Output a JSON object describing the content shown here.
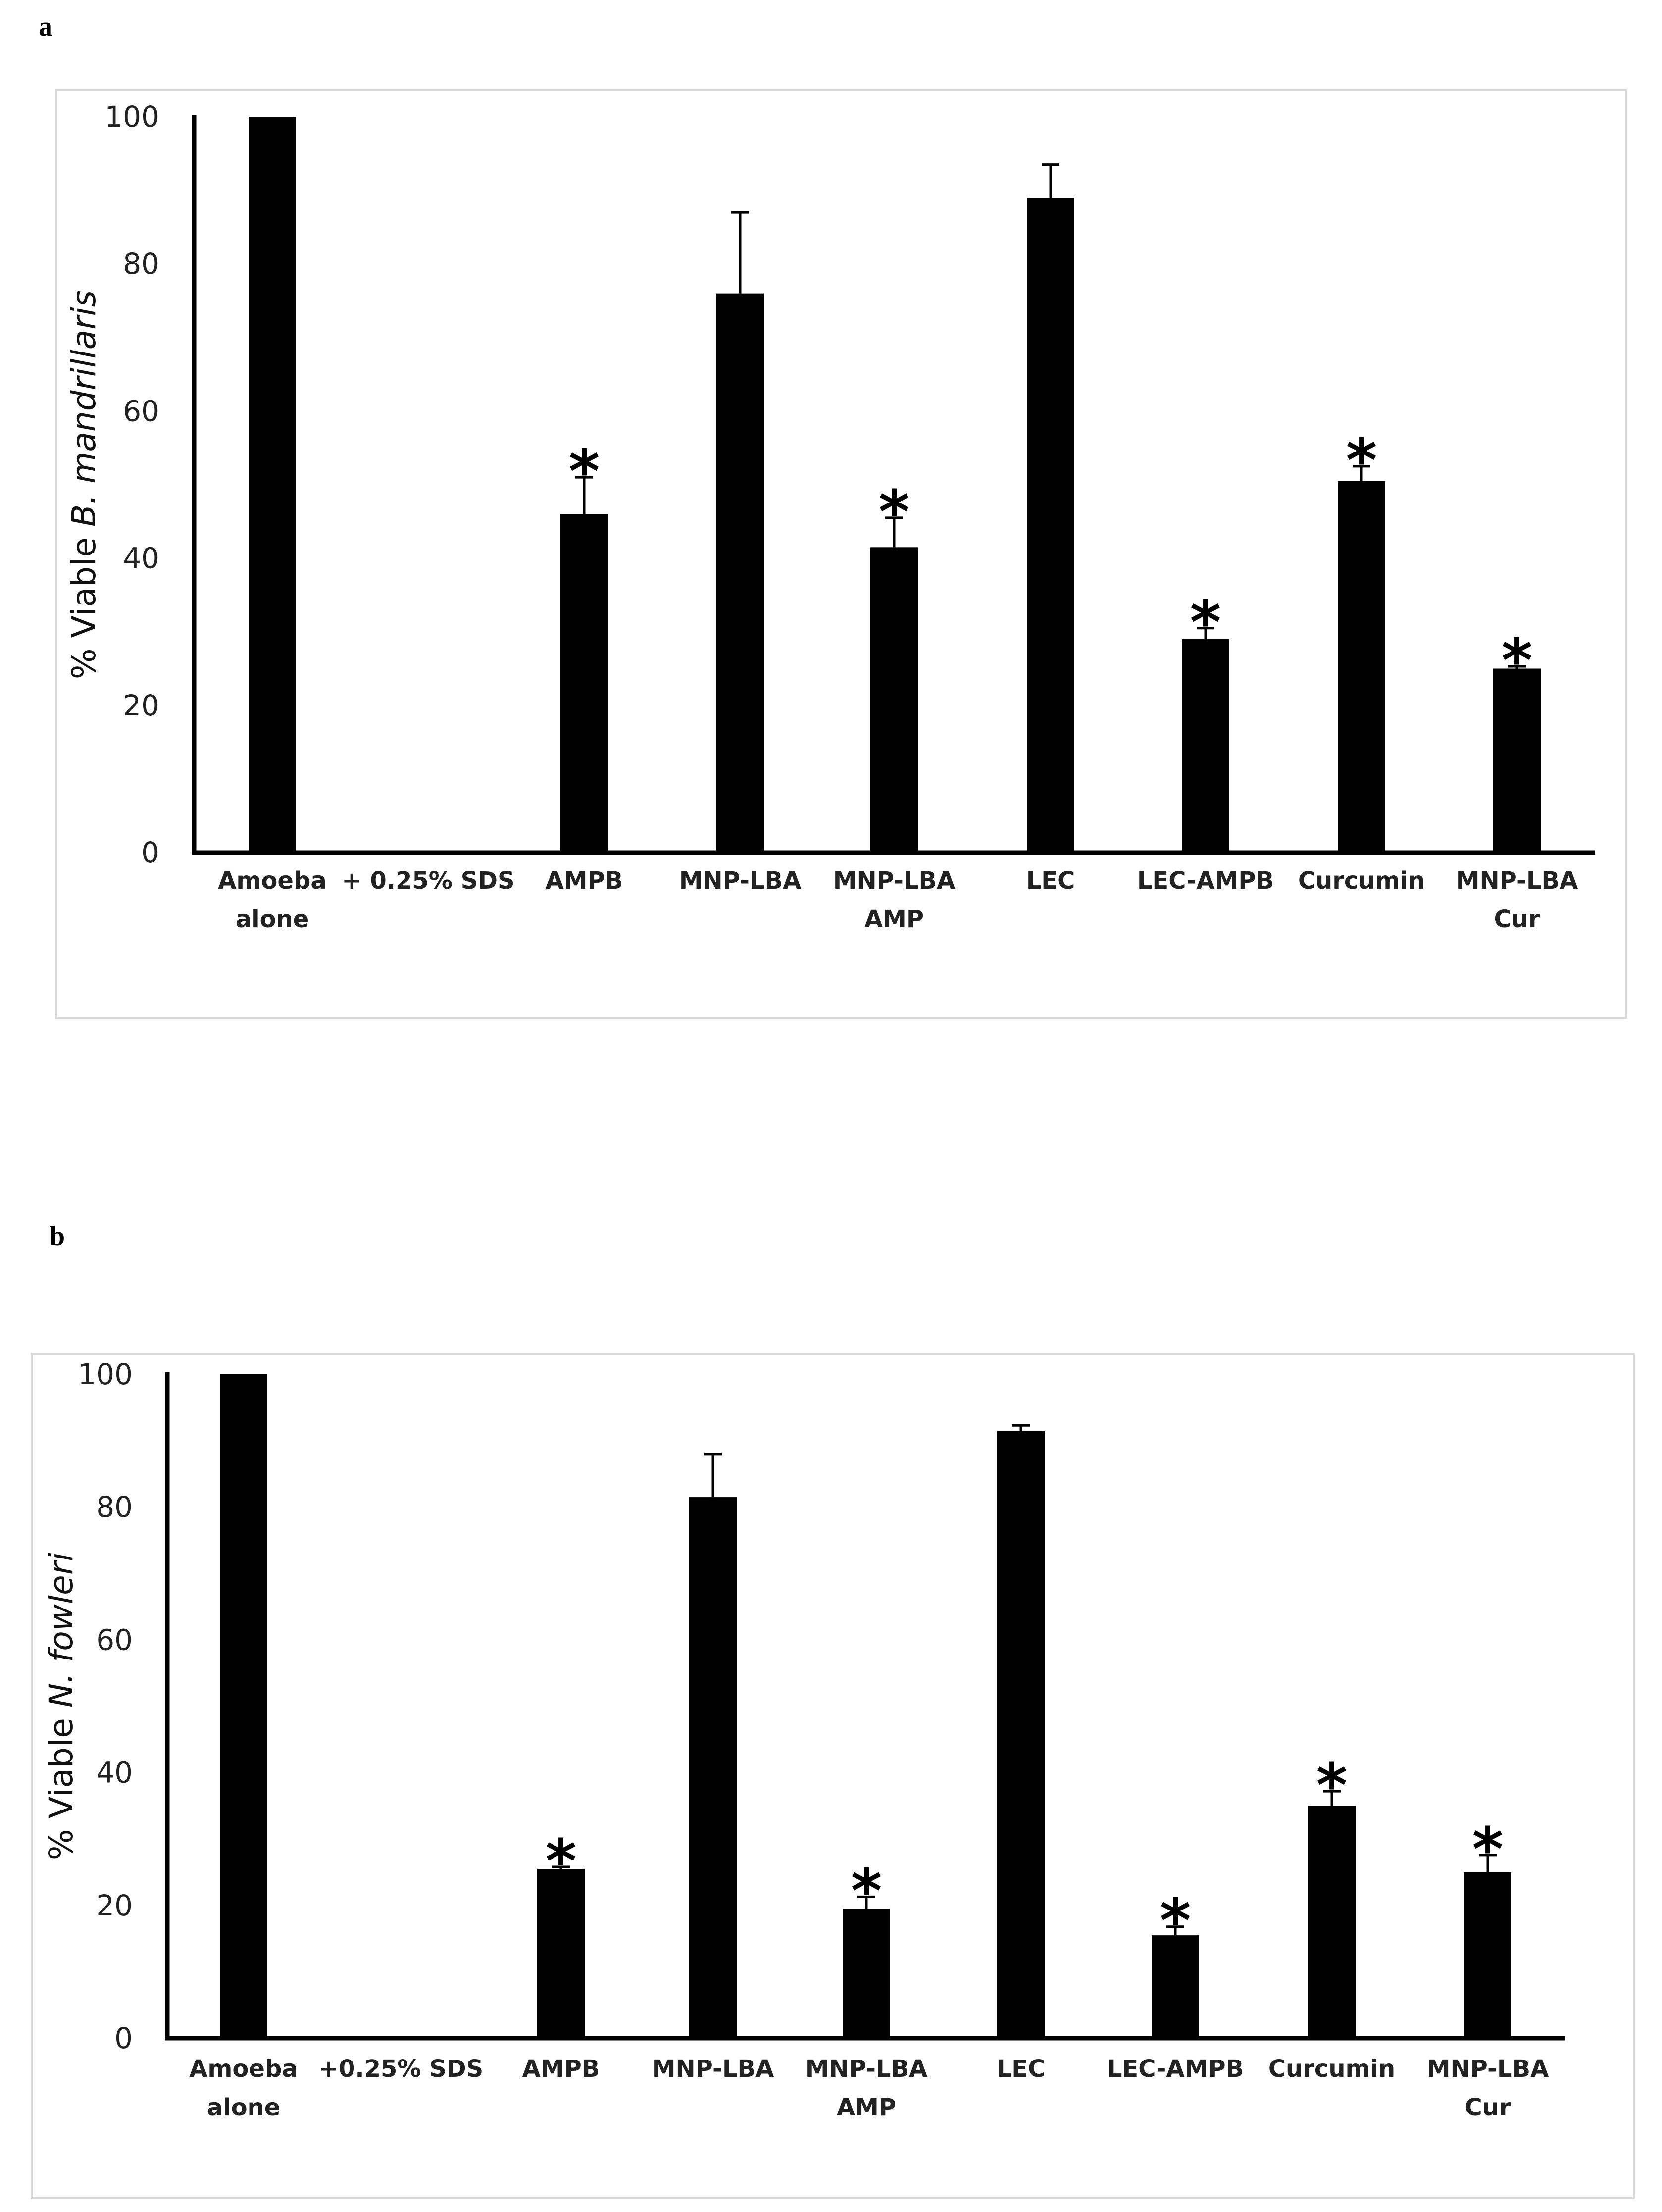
{
  "chart_data": [
    {
      "panel": "a",
      "type": "bar",
      "ylabel_prefix": "% Viable ",
      "ylabel_species": "B. mandrillaris",
      "ylim": [
        0,
        100
      ],
      "yticks": [
        0,
        20,
        40,
        60,
        80,
        100
      ],
      "categories": [
        [
          "Amoeba",
          "alone"
        ],
        [
          "+ 0.25% SDS"
        ],
        [
          "AMPB"
        ],
        [
          "MNP-LBA"
        ],
        [
          "MNP-LBA",
          "AMP"
        ],
        [
          "LEC"
        ],
        [
          "LEC-AMPB"
        ],
        [
          "Curcumin"
        ],
        [
          "MNP-LBA",
          "Cur"
        ]
      ],
      "values": [
        100,
        0,
        46,
        76,
        41.5,
        89,
        29,
        50.5,
        25
      ],
      "errors": [
        0,
        0,
        5,
        11,
        4,
        4.5,
        1.5,
        2,
        0.3
      ],
      "significant": [
        false,
        false,
        true,
        false,
        true,
        false,
        true,
        true,
        true
      ],
      "significance_marker": "*",
      "bar_color": "#000000"
    },
    {
      "panel": "b",
      "type": "bar",
      "ylabel_prefix": "% Viable ",
      "ylabel_species": "N. fowleri",
      "ylim": [
        0,
        100
      ],
      "yticks": [
        0,
        20,
        40,
        60,
        80,
        100
      ],
      "categories": [
        [
          "Amoeba",
          "alone"
        ],
        [
          "+0.25% SDS"
        ],
        [
          "AMPB"
        ],
        [
          "MNP-LBA"
        ],
        [
          "MNP-LBA",
          "AMP"
        ],
        [
          "LEC"
        ],
        [
          "LEC-AMPB"
        ],
        [
          "Curcumin"
        ],
        [
          "MNP-LBA",
          "Cur"
        ]
      ],
      "values": [
        100,
        0,
        25.5,
        81.5,
        19.5,
        91.5,
        15.5,
        35,
        25
      ],
      "errors": [
        0,
        0,
        0.3,
        6.5,
        1.8,
        0.8,
        1.3,
        2.2,
        2.6
      ],
      "significant": [
        false,
        false,
        true,
        false,
        true,
        false,
        true,
        true,
        true
      ],
      "significance_marker": "*",
      "bar_color": "#000000"
    }
  ],
  "panel_labels": {
    "a": "a",
    "b": "b"
  }
}
